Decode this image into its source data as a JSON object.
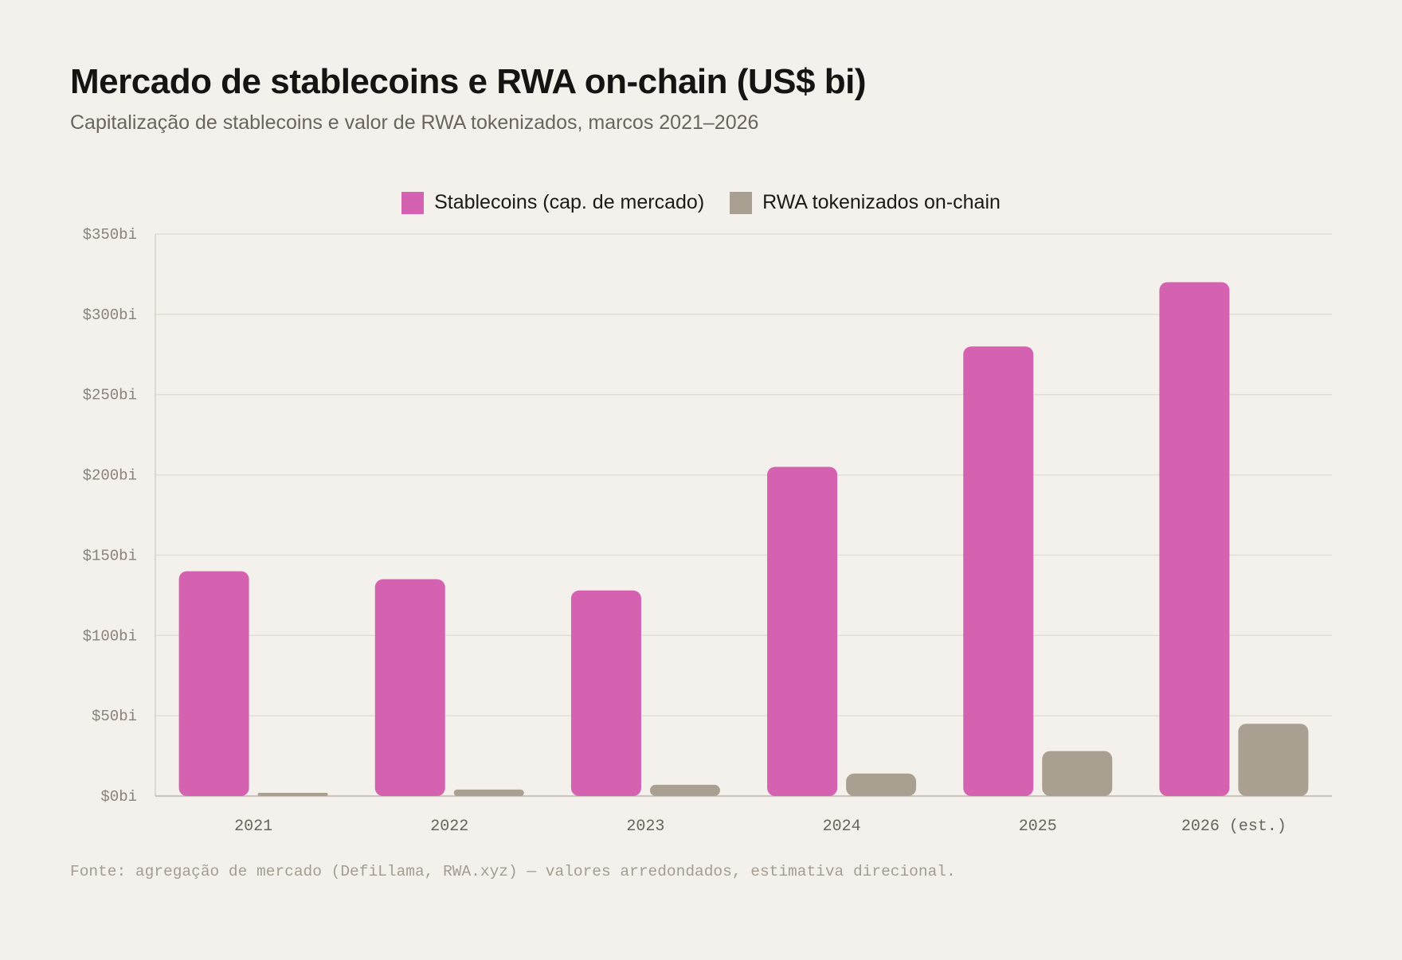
{
  "header": {
    "title": "Mercado de stablecoins e RWA on-chain (US$ bi)",
    "subtitle": "Capitalização de stablecoins e valor de RWA tokenizados, marcos 2021–2026"
  },
  "legend": {
    "items": [
      {
        "label": "Stablecoins (cap. de mercado)",
        "color": "#d462b1"
      },
      {
        "label": "RWA tokenizados on-chain",
        "color": "#aaa092"
      }
    ]
  },
  "footer": {
    "source": "Fonte: agregação de mercado (DefiLlama, RWA.xyz) — valores arredondados, estimativa direcional."
  },
  "chart_data": {
    "type": "bar",
    "title": "Mercado de stablecoins e RWA on-chain (US$ bi)",
    "subtitle": "Capitalização de stablecoins e valor de RWA tokenizados, marcos 2021–2026",
    "categories": [
      "2021",
      "2022",
      "2023",
      "2024",
      "2025",
      "2026 (est.)"
    ],
    "series": [
      {
        "name": "Stablecoins (cap. de mercado)",
        "color": "#d462b1",
        "values": [
          140,
          135,
          128,
          205,
          280,
          320
        ]
      },
      {
        "name": "RWA tokenizados on-chain",
        "color": "#aaa092",
        "values": [
          2,
          4,
          7,
          14,
          28,
          45
        ]
      }
    ],
    "ylim": [
      0,
      350
    ],
    "yticks": [
      0,
      50,
      100,
      150,
      200,
      250,
      300,
      350
    ],
    "ytick_labels": [
      "$0bi",
      "$50bi",
      "$100bi",
      "$150bi",
      "$200bi",
      "$250bi",
      "$300bi",
      "$350bi"
    ],
    "xlabel": "",
    "ylabel": "",
    "grid": true,
    "legend_position": "top-center"
  }
}
